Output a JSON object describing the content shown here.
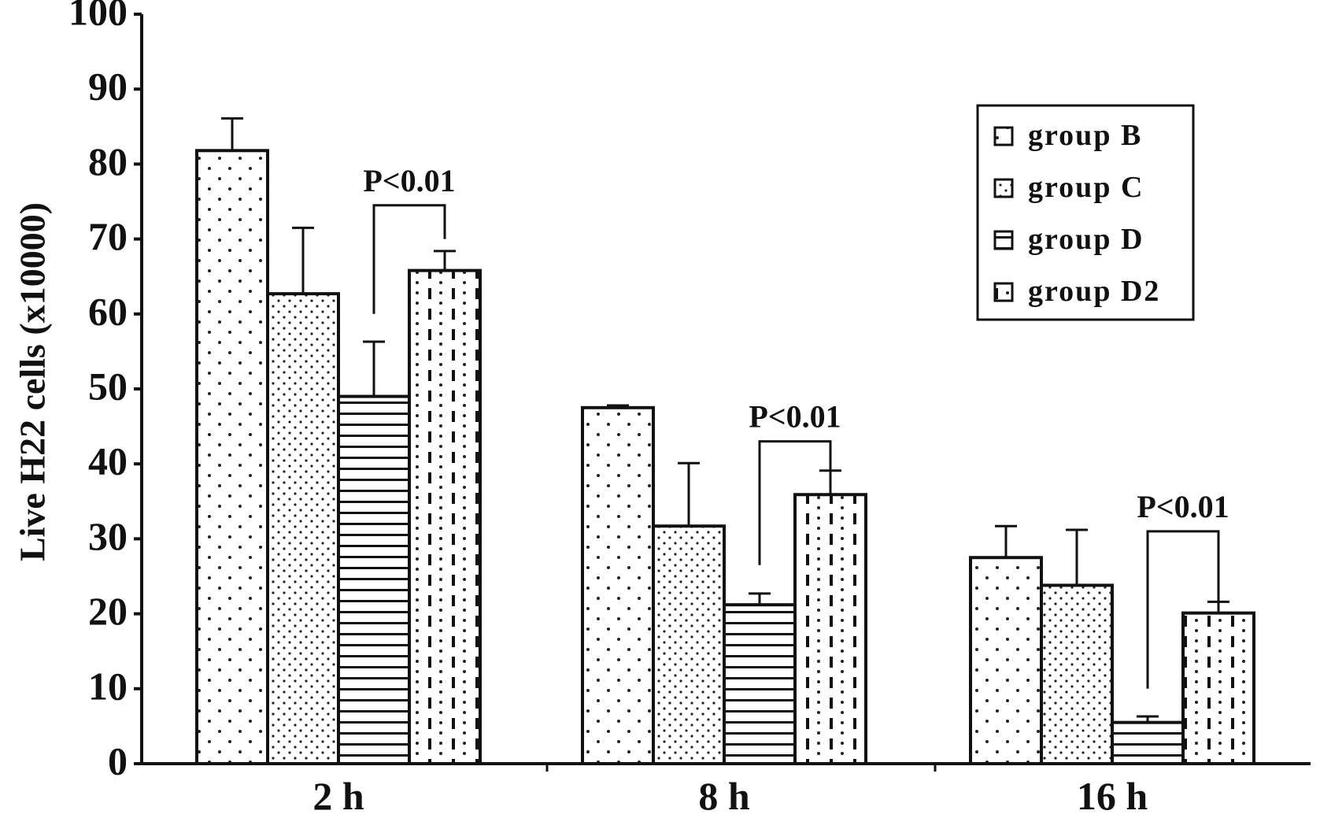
{
  "chart_data": {
    "type": "bar",
    "ylabel": "Live  H22 cells (x10000)",
    "xlabel": "",
    "ylim": [
      0,
      100
    ],
    "yticks": [
      0,
      10,
      20,
      30,
      40,
      50,
      60,
      70,
      80,
      90,
      100
    ],
    "categories": [
      "2 h",
      "8 h",
      "16 h"
    ],
    "series": [
      {
        "name": "group B",
        "pattern": "sparse-dots",
        "values": [
          81.8,
          47.5,
          27.5
        ],
        "errors": [
          4.3,
          0.3,
          4.2
        ]
      },
      {
        "name": "group C",
        "pattern": "dense-dots",
        "values": [
          62.7,
          31.7,
          23.8
        ],
        "errors": [
          8.8,
          8.4,
          7.4
        ]
      },
      {
        "name": "group D",
        "pattern": "horizontal-lines",
        "values": [
          49.0,
          21.2,
          5.5
        ],
        "errors": [
          7.3,
          1.5,
          0.8
        ]
      },
      {
        "name": "group D2",
        "pattern": "dashed-vertical",
        "values": [
          65.8,
          35.9,
          20.1
        ],
        "errors": [
          2.6,
          3.2,
          1.5
        ]
      }
    ],
    "annotations": [
      {
        "category": "2 h",
        "text": "P<0.01",
        "from_series": 2,
        "to_series": 3,
        "left_y": 60,
        "right_y": 70,
        "bar_y": 74.5
      },
      {
        "category": "8 h",
        "text": "P<0.01",
        "from_series": 2,
        "to_series": 3,
        "left_y": 26.5,
        "right_y": 36.5,
        "bar_y": 43
      },
      {
        "category": "16 h",
        "text": "P<0.01",
        "from_series": 2,
        "to_series": 3,
        "left_y": 10,
        "right_y": 20.5,
        "bar_y": 31
      }
    ],
    "legend_position": "top-right",
    "grid": false
  }
}
